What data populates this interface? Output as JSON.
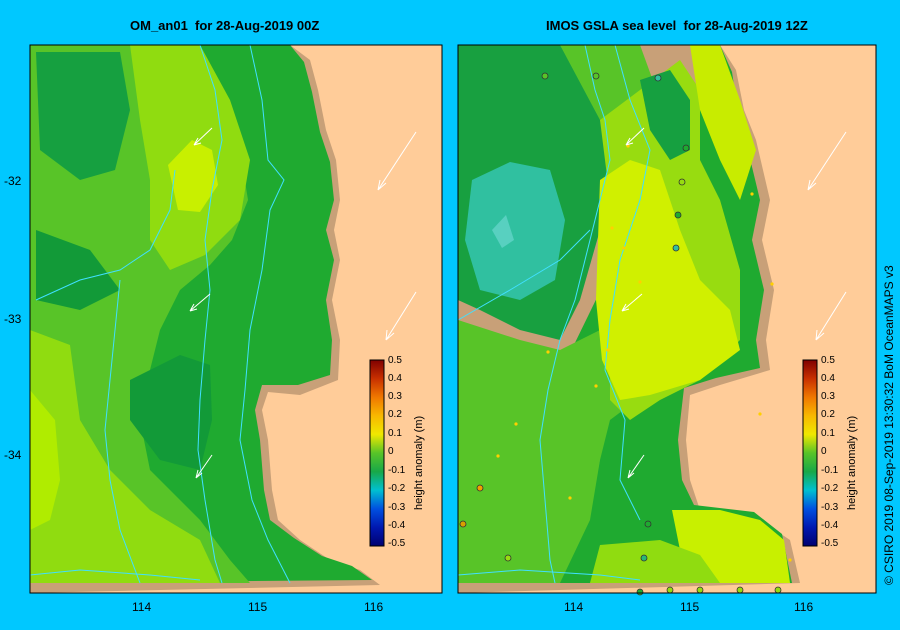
{
  "left_panel": {
    "title": "OM_an01  for 28-Aug-2019 00Z",
    "lat_labels": [
      "-32",
      "-33",
      "-34"
    ],
    "lon_labels": [
      "114",
      "115",
      "116"
    ]
  },
  "right_panel": {
    "title": "IMOS GSLA sea level  for 28-Aug-2019 12Z",
    "lon_labels": [
      "114",
      "115",
      "116"
    ]
  },
  "colorbar": {
    "label": "height anomaly (m)",
    "ticks": [
      "0.5",
      "0.4",
      "0.3",
      "0.2",
      "0.1",
      "0",
      "-0.1",
      "-0.2",
      "-0.3",
      "-0.4",
      "-0.5"
    ]
  },
  "credit": "© CSIRO 2019   08-Sep-2019 13:30:32 BoM OceanMAPS v3",
  "colors": {
    "background": "#00c8ff",
    "land": "#ffcc99",
    "shelf": "#c8a078",
    "contour_line": "#40e0ff"
  }
}
